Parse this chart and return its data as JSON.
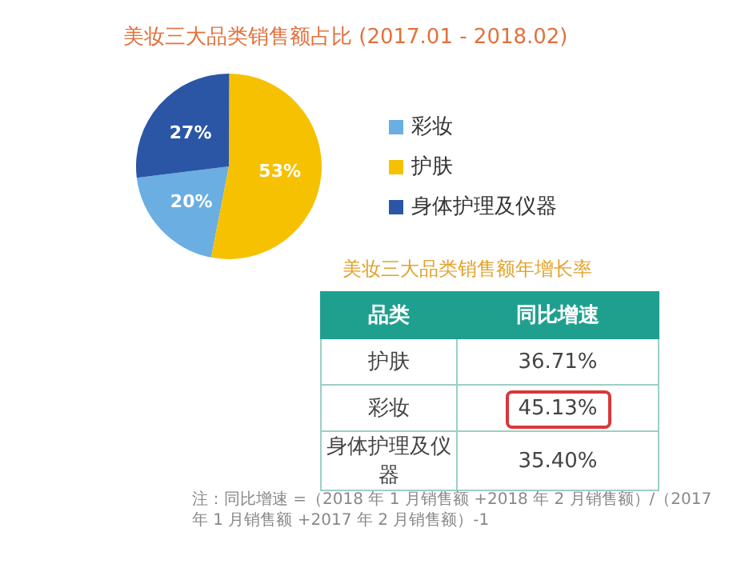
{
  "chart_data": [
    {
      "type": "pie",
      "title": "美妆三大品类销售额占比 (2017.01 - 2018.02)",
      "categories": [
        "彩妆",
        "护肤",
        "身体护理及仪器"
      ],
      "values": [
        20,
        53,
        27
      ],
      "colors": [
        "#6aaee2",
        "#f6c100",
        "#2b56a6"
      ],
      "value_labels": [
        "20%",
        "53%",
        "27%"
      ],
      "legend": "right"
    },
    {
      "type": "other",
      "title": "美妆三大品类销售额年增长率",
      "xlabel": "品类",
      "ylabel": "同比增速",
      "categories": [
        "护肤",
        "彩妆",
        "身体护理及仪器"
      ],
      "value_labels": [
        "36.71%",
        "45.13%",
        "35.40%"
      ],
      "annotations": [
        "注：同比增速 =（2018 年 1 月销售额 +2018 年 2 月销售额）/（2017 年 1 月销售额 +2017 年 2 月销售额）-1"
      ]
    }
  ]
}
